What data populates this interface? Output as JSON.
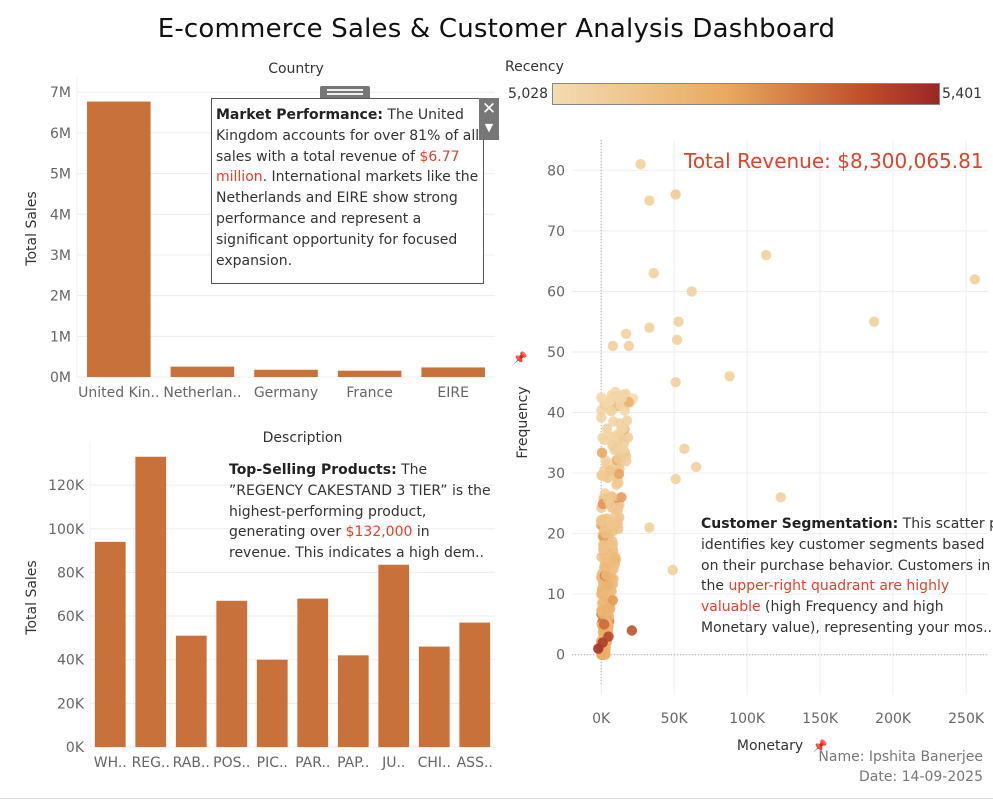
{
  "dashboard": {
    "title": "E-commerce Sales & Customer Analysis Dashboard",
    "author_label": "Name: Ipshita Banerjee",
    "date_label": "Date: 14-09-2025",
    "total_revenue": "Total Revenue: $8,300,065.81"
  },
  "colors": {
    "bar": "#c8713a",
    "highlight": "#e0412a",
    "recency_low": "#f3dcb1",
    "recency_high": "#9b2626"
  },
  "annotations": {
    "market": {
      "lead": "Market Performance:",
      "text1": " The United Kingdom accounts for over 81% of all sales with a total revenue of ",
      "highlight": "$6.77 million",
      "text2": ". International markets like the Netherlands and EIRE show strong performance and represent a significant opportunity for focused expansion."
    },
    "products": {
      "lead": "Top-Selling Products:",
      "text1": " The ”REGENCY CAKESTAND 3 TIER” is the highest-performing product, generating over ",
      "highlight": "$132,000",
      "text2": " in revenue. This indicates a high dem.."
    },
    "segmentation": {
      "lead": "Customer Segmentation:",
      "line1": " This scatter plot",
      "line2": "identifies key customer segments based",
      "line3": "on their purchase behavior. Customers in",
      "line4_pre": "the ",
      "line4_hl": "upper-right quadrant are highly",
      "line5_hl": "valuable",
      "line5_post": " (high Frequency and high",
      "line6": "Monetary value), representing your mos.."
    }
  },
  "chart_data": [
    {
      "type": "bar",
      "title": "Country",
      "ylabel": "Total Sales",
      "categories": [
        "United Kin..",
        "Netherlan..",
        "Germany",
        "France",
        "EIRE"
      ],
      "values": [
        6770000,
        255000,
        178000,
        155000,
        235000
      ],
      "yticks": [
        0,
        1000000,
        2000000,
        3000000,
        4000000,
        5000000,
        6000000,
        7000000
      ],
      "ytick_labels": [
        "0M",
        "1M",
        "2M",
        "3M",
        "4M",
        "5M",
        "6M",
        "7M"
      ],
      "ylim": [
        0,
        7300000
      ],
      "grid": true
    },
    {
      "type": "bar",
      "title": "Description",
      "ylabel": "Total Sales",
      "categories": [
        "WH..",
        "REG..",
        "RAB..",
        "POS..",
        "PIC..",
        "PAR..",
        "PAP..",
        "JU..",
        "CHI..",
        "ASS.."
      ],
      "values": [
        94000,
        133000,
        51000,
        67000,
        40000,
        68000,
        42000,
        83500,
        46000,
        57000
      ],
      "yticks": [
        0,
        20000,
        40000,
        60000,
        80000,
        100000,
        120000
      ],
      "ytick_labels": [
        "0K",
        "20K",
        "40K",
        "60K",
        "80K",
        "100K",
        "120K"
      ],
      "ylim": [
        0,
        137000
      ],
      "grid": true
    },
    {
      "type": "scatter",
      "title": "",
      "xlabel": "Monetary",
      "ylabel": "Frequency",
      "color_legend": {
        "title": "Recency",
        "min_label": "5,028",
        "max_label": "5,401"
      },
      "xticks": [
        0,
        50000,
        100000,
        150000,
        200000,
        250000
      ],
      "xtick_labels": [
        "0K",
        "50K",
        "100K",
        "150K",
        "200K",
        "250K"
      ],
      "yticks": [
        0,
        10,
        20,
        30,
        40,
        50,
        60,
        70,
        80
      ],
      "ytick_labels": [
        "0",
        "10",
        "20",
        "30",
        "40",
        "50",
        "60",
        "70",
        "80"
      ],
      "xlim": [
        -20000,
        265000
      ],
      "ylim": [
        -5,
        85
      ],
      "grid": true,
      "outliers": [
        {
          "x": 27000,
          "y": 81,
          "r": 0.1
        },
        {
          "x": 51000,
          "y": 76,
          "r": 0.15
        },
        {
          "x": 33000,
          "y": 75,
          "r": 0.1
        },
        {
          "x": 113000,
          "y": 66,
          "r": 0.1
        },
        {
          "x": 36000,
          "y": 63,
          "r": 0.1
        },
        {
          "x": 256000,
          "y": 62,
          "r": 0.1
        },
        {
          "x": 62000,
          "y": 60,
          "r": 0.1
        },
        {
          "x": 187000,
          "y": 55,
          "r": 0.1
        },
        {
          "x": 53000,
          "y": 55,
          "r": 0.1
        },
        {
          "x": 33000,
          "y": 54,
          "r": 0.1
        },
        {
          "x": 17000,
          "y": 53,
          "r": 0.1
        },
        {
          "x": 19000,
          "y": 51,
          "r": 0.1
        },
        {
          "x": 52000,
          "y": 52,
          "r": 0.1
        },
        {
          "x": 8000,
          "y": 51,
          "r": 0.1
        },
        {
          "x": 88000,
          "y": 46,
          "r": 0.1
        },
        {
          "x": 51000,
          "y": 45,
          "r": 0.1
        },
        {
          "x": 57000,
          "y": 34,
          "r": 0.1
        },
        {
          "x": 65000,
          "y": 31,
          "r": 0.1
        },
        {
          "x": 51000,
          "y": 29,
          "r": 0.1
        },
        {
          "x": 123000,
          "y": 26,
          "r": 0.1
        },
        {
          "x": 33000,
          "y": 21,
          "r": 0.1
        },
        {
          "x": 49000,
          "y": 14,
          "r": 0.1
        },
        {
          "x": 21000,
          "y": 4,
          "r": 0.8
        },
        {
          "x": -2000,
          "y": 1,
          "r": 0.95
        },
        {
          "x": 1000,
          "y": 2,
          "r": 0.9
        },
        {
          "x": 5000,
          "y": 3,
          "r": 0.85
        },
        {
          "x": 2000,
          "y": 5,
          "r": 0.7
        },
        {
          "x": 8000,
          "y": 9,
          "r": 0.5
        }
      ],
      "cluster": {
        "x_max": 20000,
        "y_max": 44,
        "count": 320,
        "seed": 7
      }
    }
  ]
}
